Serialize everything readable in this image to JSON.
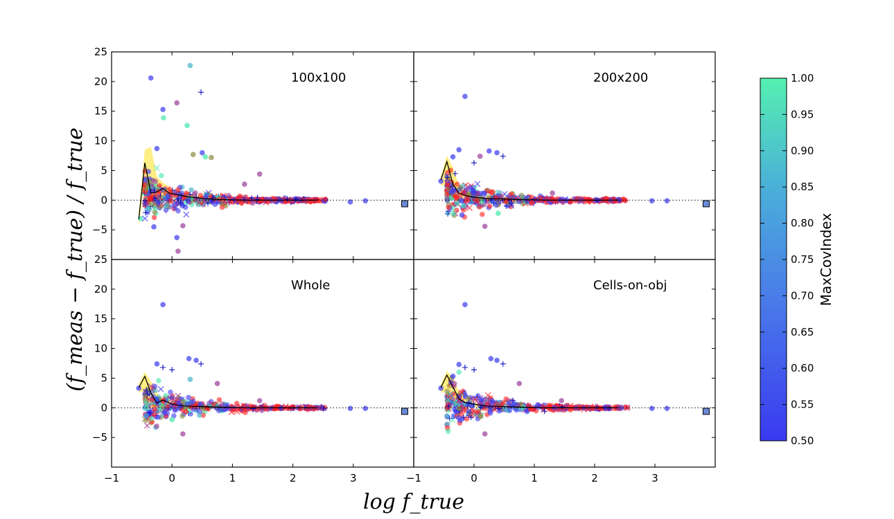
{
  "chart_data": {
    "type": "scatter",
    "layout": "2x2 panels with shared axes",
    "xlabel": "log f_true",
    "ylabel": "(f_meas − f_true) / f_true",
    "xlim": [
      -1,
      4
    ],
    "ylim": [
      -10,
      25
    ],
    "x_ticks": [
      "−1",
      "0",
      "1",
      "2",
      "3"
    ],
    "y_ticks_top": [
      "25",
      "20",
      "15",
      "10",
      "5",
      "0",
      "−5"
    ],
    "y_ticks_bottom": [
      "25",
      "20",
      "15",
      "10",
      "5",
      "0",
      "−5"
    ],
    "reference_line": {
      "y": 0,
      "style": "dotted"
    },
    "colorbar": {
      "label": "MaxCovIndex",
      "min": 0.5,
      "max": 1.0,
      "ticks": [
        "1.00",
        "0.95",
        "0.90",
        "0.85",
        "0.80",
        "0.75",
        "0.70",
        "0.65",
        "0.60",
        "0.55",
        "0.50"
      ],
      "colors": [
        "#3a3af0",
        "#4a7de8",
        "#4ab0d8",
        "#55f0b0"
      ]
    },
    "marker_colors": {
      "blue": "#3a3af0",
      "red": "#ff2020",
      "green": "#40e8a8",
      "teal": "#40b0c8",
      "purple": "#9a3a9a",
      "olive": "#8a8a3a"
    },
    "panels": [
      {
        "label": "100x100",
        "median_line": {
          "x": [
            -0.55,
            -0.45,
            -0.35,
            -0.25,
            -0.15,
            -0.05,
            0.1,
            0.3,
            0.5,
            0.8,
            1.2,
            1.6,
            2.0,
            2.4
          ],
          "y": [
            -3.2,
            6.3,
            1.2,
            1.4,
            2.0,
            1.2,
            0.9,
            0.5,
            0.3,
            0.1,
            0.0,
            0.0,
            0.0,
            0.0
          ]
        },
        "band": {
          "x": [
            -0.55,
            -0.45,
            -0.35,
            -0.25,
            -0.15,
            -0.05,
            0.1,
            0.3,
            0.6
          ],
          "upper": [
            -2.0,
            8.5,
            9.0,
            4.0,
            3.0,
            2.2,
            1.5,
            1.0,
            0.6
          ],
          "lower": [
            -4.5,
            3.5,
            0.0,
            -0.6,
            0.6,
            0.4,
            0.3,
            0.1,
            0.0
          ]
        },
        "highlights": [
          {
            "x": -0.35,
            "y": 20.6,
            "c": "blue"
          },
          {
            "x": 0.3,
            "y": 22.7,
            "c": "teal"
          },
          {
            "x": 0.48,
            "y": 18.2,
            "c": "plus"
          },
          {
            "x": 0.08,
            "y": 16.4,
            "c": "purple"
          },
          {
            "x": -0.15,
            "y": 15.3,
            "c": "blue"
          },
          {
            "x": -0.14,
            "y": 13.9,
            "c": "green"
          },
          {
            "x": 0.25,
            "y": 12.6,
            "c": "green"
          },
          {
            "x": -0.25,
            "y": 8.7,
            "c": "blue"
          },
          {
            "x": -0.52,
            "y": -3.1,
            "c": "green"
          },
          {
            "x": -0.3,
            "y": -4.5,
            "c": "blue"
          },
          {
            "x": 0.08,
            "y": -6.3,
            "c": "blue"
          },
          {
            "x": 0.1,
            "y": -8.6,
            "c": "purple"
          },
          {
            "x": 0.18,
            "y": -4.3,
            "c": "purple"
          },
          {
            "x": 0.35,
            "y": 7.7,
            "c": "olive"
          },
          {
            "x": 0.5,
            "y": 8.0,
            "c": "blue"
          },
          {
            "x": 0.55,
            "y": 7.3,
            "c": "green"
          },
          {
            "x": 0.65,
            "y": 7.2,
            "c": "olive"
          },
          {
            "x": 1.2,
            "y": 2.7,
            "c": "purple"
          },
          {
            "x": 1.15,
            "y": -0.5,
            "c": "red"
          },
          {
            "x": 1.45,
            "y": 4.4,
            "c": "purple"
          },
          {
            "x": 3.2,
            "y": -0.1,
            "c": "blue"
          },
          {
            "x": 2.95,
            "y": -0.3,
            "c": "blue"
          },
          {
            "x": 3.85,
            "y": -0.6,
            "c": "square"
          }
        ],
        "cloud_scale": 1.0
      },
      {
        "label": "200x200",
        "median_line": {
          "x": [
            -0.55,
            -0.45,
            -0.35,
            -0.25,
            -0.15,
            0.0,
            0.2,
            0.5,
            0.8,
            1.2,
            1.6,
            2.0,
            2.4
          ],
          "y": [
            3.4,
            6.5,
            2.7,
            1.2,
            0.8,
            0.5,
            0.3,
            0.2,
            0.1,
            0.0,
            0.0,
            0.0,
            0.0
          ]
        },
        "band": {
          "x": [
            -0.55,
            -0.45,
            -0.35,
            -0.25,
            -0.15,
            0.0,
            0.2
          ],
          "upper": [
            4.0,
            7.5,
            5.5,
            2.5,
            1.5,
            0.9,
            0.5
          ],
          "lower": [
            2.5,
            2.5,
            0.0,
            0.0,
            0.2,
            0.1,
            0.0
          ]
        },
        "highlights": [
          {
            "x": -0.15,
            "y": 17.5,
            "c": "blue"
          },
          {
            "x": -0.55,
            "y": 3.2,
            "c": "blue"
          },
          {
            "x": -0.35,
            "y": 7.3,
            "c": "blue"
          },
          {
            "x": -0.25,
            "y": 8.5,
            "c": "blue"
          },
          {
            "x": 0.25,
            "y": 8.3,
            "c": "blue"
          },
          {
            "x": 0.38,
            "y": 8.0,
            "c": "blue"
          },
          {
            "x": 0.48,
            "y": 7.4,
            "c": "plus"
          },
          {
            "x": 0.1,
            "y": 7.4,
            "c": "purple"
          },
          {
            "x": 0.0,
            "y": 6.3,
            "c": "plus"
          },
          {
            "x": 0.18,
            "y": -4.4,
            "c": "purple"
          },
          {
            "x": -0.2,
            "y": -2.5,
            "c": "blue"
          },
          {
            "x": 0.4,
            "y": -2.2,
            "c": "green"
          },
          {
            "x": 1.3,
            "y": 1.2,
            "c": "purple"
          },
          {
            "x": 2.95,
            "y": -0.1,
            "c": "blue"
          },
          {
            "x": 3.2,
            "y": -0.1,
            "c": "blue"
          },
          {
            "x": 3.85,
            "y": -0.6,
            "c": "square"
          }
        ],
        "cloud_scale": 0.85
      },
      {
        "label": "Whole",
        "median_line": {
          "x": [
            -0.55,
            -0.45,
            -0.35,
            -0.25,
            -0.15,
            0.0,
            0.2,
            0.5,
            0.8,
            1.2,
            1.6,
            2.0,
            2.4
          ],
          "y": [
            3.4,
            5.3,
            2.5,
            0.8,
            1.3,
            0.6,
            0.3,
            0.2,
            0.1,
            0.0,
            0.0,
            0.0,
            0.0
          ]
        },
        "band": {
          "x": [
            -0.55,
            -0.45,
            -0.35,
            -0.25,
            -0.15,
            0.0,
            0.2
          ],
          "upper": [
            4.0,
            6.0,
            4.5,
            2.5,
            1.5,
            0.9,
            0.5
          ],
          "lower": [
            2.5,
            3.0,
            0.0,
            0.0,
            0.2,
            0.1,
            0.0
          ]
        },
        "highlights": [
          {
            "x": -0.15,
            "y": 17.4,
            "c": "blue"
          },
          {
            "x": -0.55,
            "y": 3.3,
            "c": "blue"
          },
          {
            "x": -0.25,
            "y": 7.4,
            "c": "blue"
          },
          {
            "x": -0.15,
            "y": 6.8,
            "c": "plus"
          },
          {
            "x": 0.0,
            "y": 6.4,
            "c": "plus"
          },
          {
            "x": 0.28,
            "y": 8.3,
            "c": "blue"
          },
          {
            "x": 0.4,
            "y": 8.0,
            "c": "blue"
          },
          {
            "x": 0.48,
            "y": 7.4,
            "c": "plus"
          },
          {
            "x": 0.3,
            "y": 4.8,
            "c": "teal"
          },
          {
            "x": 0.75,
            "y": 4.1,
            "c": "purple"
          },
          {
            "x": 0.18,
            "y": -4.4,
            "c": "purple"
          },
          {
            "x": 0.0,
            "y": -2.0,
            "c": "green"
          },
          {
            "x": 1.45,
            "y": 1.2,
            "c": "purple"
          },
          {
            "x": 2.95,
            "y": -0.1,
            "c": "blue"
          },
          {
            "x": 3.2,
            "y": -0.1,
            "c": "blue"
          },
          {
            "x": 3.85,
            "y": -0.6,
            "c": "square"
          }
        ],
        "cloud_scale": 0.75
      },
      {
        "label": "Cells-on-obj",
        "median_line": {
          "x": [
            -0.55,
            -0.45,
            -0.35,
            -0.25,
            -0.15,
            0.0,
            0.2,
            0.5,
            0.8,
            1.2,
            1.6,
            2.0,
            2.4
          ],
          "y": [
            3.4,
            5.5,
            3.5,
            1.5,
            0.9,
            0.6,
            0.3,
            0.2,
            0.1,
            0.0,
            0.0,
            0.0,
            0.0
          ]
        },
        "band": {
          "x": [
            -0.55,
            -0.45,
            -0.35,
            -0.25,
            -0.15,
            0.0,
            0.2
          ],
          "upper": [
            4.0,
            6.2,
            5.0,
            2.8,
            1.5,
            0.9,
            0.5
          ],
          "lower": [
            2.5,
            3.0,
            0.5,
            0.0,
            0.2,
            0.1,
            0.0
          ]
        },
        "highlights": [
          {
            "x": -0.15,
            "y": 17.4,
            "c": "blue"
          },
          {
            "x": -0.55,
            "y": 3.3,
            "c": "blue"
          },
          {
            "x": -0.35,
            "y": 5.3,
            "c": "blue"
          },
          {
            "x": -0.25,
            "y": 7.3,
            "c": "blue"
          },
          {
            "x": -0.15,
            "y": 6.8,
            "c": "plus"
          },
          {
            "x": 0.0,
            "y": 6.4,
            "c": "plus"
          },
          {
            "x": 0.28,
            "y": 8.3,
            "c": "blue"
          },
          {
            "x": 0.38,
            "y": 8.0,
            "c": "blue"
          },
          {
            "x": 0.48,
            "y": 7.4,
            "c": "plus"
          },
          {
            "x": 0.75,
            "y": 4.1,
            "c": "purple"
          },
          {
            "x": 0.18,
            "y": -4.4,
            "c": "purple"
          },
          {
            "x": 1.45,
            "y": 1.2,
            "c": "purple"
          },
          {
            "x": 2.95,
            "y": -0.1,
            "c": "blue"
          },
          {
            "x": 3.2,
            "y": -0.1,
            "c": "blue"
          },
          {
            "x": 3.85,
            "y": -0.6,
            "c": "square"
          }
        ],
        "cloud_scale": 0.75
      }
    ]
  }
}
